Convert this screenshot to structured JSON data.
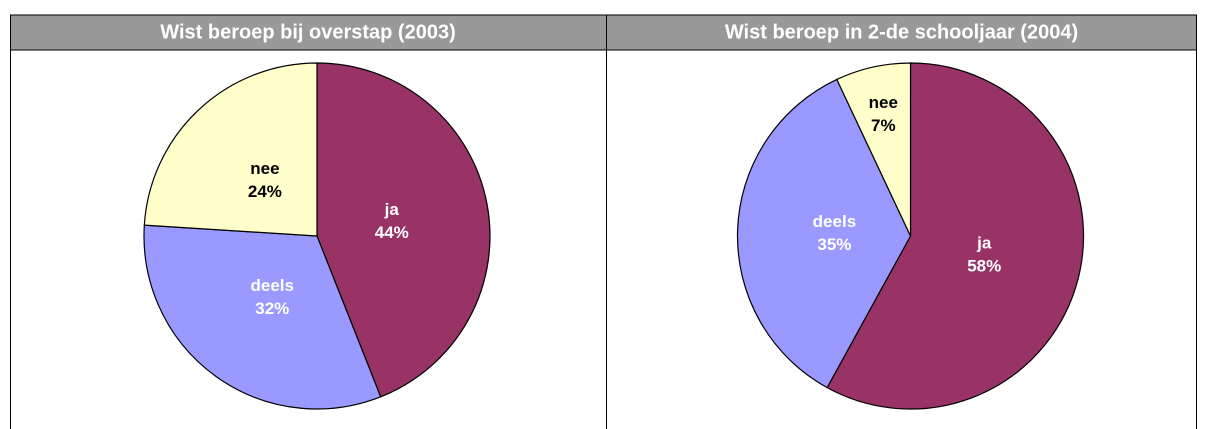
{
  "chart_data": [
    {
      "type": "pie",
      "title": "Wist beroep bij overstap (2003)",
      "categories": [
        "ja",
        "deels",
        "nee"
      ],
      "values": [
        44,
        32,
        24
      ],
      "value_labels": [
        "44%",
        "32%",
        "24%"
      ],
      "colors": [
        "#993366",
        "#9999ff",
        "#ffffcc"
      ]
    },
    {
      "type": "pie",
      "title": "Wist beroep in 2-de schooljaar (2004)",
      "categories": [
        "ja",
        "deels",
        "nee"
      ],
      "values": [
        58,
        35,
        7
      ],
      "value_labels": [
        "58%",
        "35%",
        "7%"
      ],
      "colors": [
        "#993366",
        "#9999ff",
        "#ffffcc"
      ]
    }
  ]
}
